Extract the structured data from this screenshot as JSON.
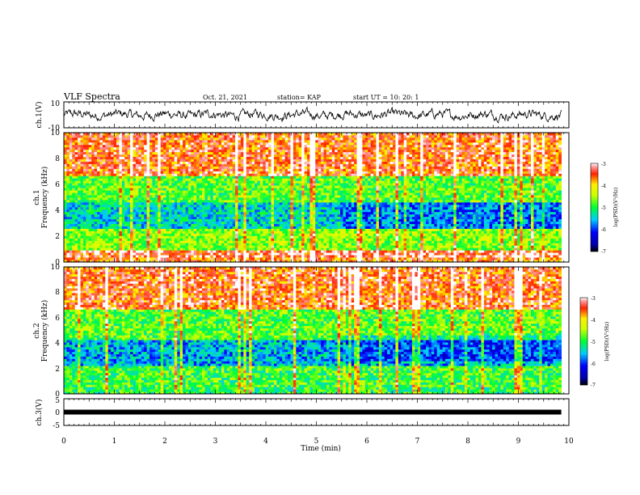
{
  "header": {
    "title": "VLF Spectra",
    "date": "Oct. 21, 2021",
    "station": "station= KAP",
    "start_ut": "start  UT  =   10: 20: 1"
  },
  "chart_data": [
    {
      "type": "line",
      "panel": "ch1-waveform",
      "ylabel": "ch.1(V)",
      "xlim": [
        0,
        10
      ],
      "ylim": [
        -10,
        10
      ],
      "yticks": [
        "10",
        "-10"
      ],
      "data_extent_min": 9.85,
      "amplitude_typical": 3,
      "color": "#000000"
    },
    {
      "type": "heatmap",
      "panel": "ch1-spectrogram",
      "ylabel": "ch.1\nFrequency (kHz)",
      "xlim": [
        0,
        10
      ],
      "ylim": [
        0,
        10
      ],
      "yticks": [
        "0",
        "2",
        "4",
        "6",
        "8",
        "10"
      ],
      "colorbar": {
        "label": "log(PSD)(V²/Hz)",
        "range": [
          -7,
          -3
        ],
        "ticks": [
          "-3",
          "-4",
          "-5",
          "-6",
          "-7"
        ]
      },
      "bands_log_psd": [
        {
          "f_from": 0.0,
          "f_to": 0.4,
          "value": -3.6
        },
        {
          "f_from": 0.4,
          "f_to": 1.0,
          "value": -3.3
        },
        {
          "f_from": 1.0,
          "f_to": 2.6,
          "value": -4.6
        },
        {
          "f_from": 2.6,
          "f_to": 4.6,
          "value": -5.4
        },
        {
          "f_from": 4.6,
          "f_to": 6.6,
          "value": -4.8
        },
        {
          "f_from": 6.6,
          "f_to": 10.0,
          "value": -3.5
        }
      ]
    },
    {
      "type": "heatmap",
      "panel": "ch2-spectrogram",
      "ylabel": "ch.2\nFrequency (kHz)",
      "xlim": [
        0,
        10
      ],
      "ylim": [
        0,
        10
      ],
      "yticks": [
        "0",
        "2",
        "4",
        "6",
        "8",
        "10"
      ],
      "colorbar": {
        "label": "log(PSD)(V²/Hz)",
        "range": [
          -7,
          -3
        ],
        "ticks": [
          "-3",
          "-4",
          "-5",
          "-6",
          "-7"
        ]
      },
      "bands_log_psd": [
        {
          "f_from": 0.0,
          "f_to": 0.6,
          "value": -5.0
        },
        {
          "f_from": 0.6,
          "f_to": 2.2,
          "value": -4.9
        },
        {
          "f_from": 2.2,
          "f_to": 4.2,
          "value": -5.6
        },
        {
          "f_from": 4.2,
          "f_to": 6.6,
          "value": -4.8
        },
        {
          "f_from": 6.6,
          "f_to": 10.0,
          "value": -3.5
        }
      ]
    },
    {
      "type": "line",
      "panel": "ch3-waveform",
      "ylabel": "ch.3(V)",
      "xlabel": "Time  (min)",
      "xlim": [
        0,
        10
      ],
      "ylim": [
        -5,
        5
      ],
      "yticks": [
        "5",
        "0",
        "-5"
      ],
      "xticks": [
        "0",
        "1",
        "2",
        "3",
        "4",
        "5",
        "6",
        "7",
        "8",
        "9",
        "10"
      ],
      "constant_level": 0,
      "data_extent_min": 9.85,
      "color": "#000000"
    }
  ]
}
